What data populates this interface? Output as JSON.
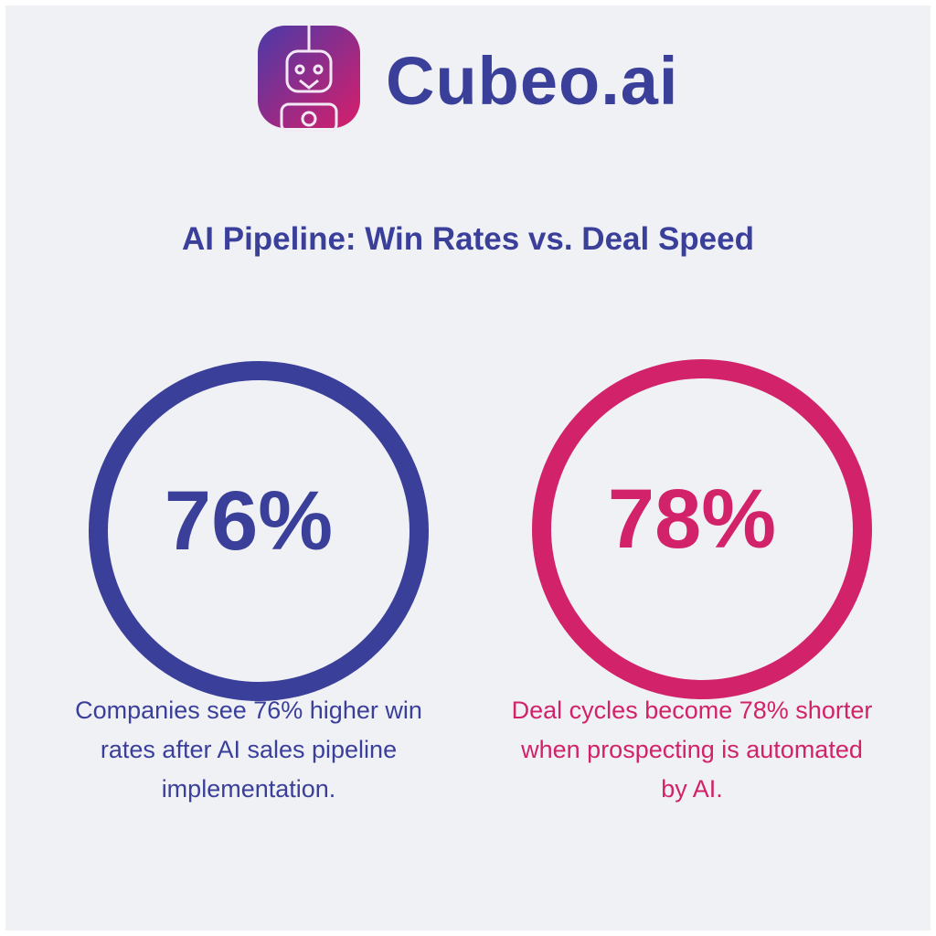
{
  "header": {
    "brand": "Cubeo.ai"
  },
  "title": "AI Pipeline: Win Rates vs. Deal Speed",
  "stats": [
    {
      "value": "76%",
      "text": "Companies see 76% higher win rates after AI sales pipeline implementation."
    },
    {
      "value": "78%",
      "text": "Deal cycles become 78% shorter when prospecting is automated by AI."
    }
  ]
}
